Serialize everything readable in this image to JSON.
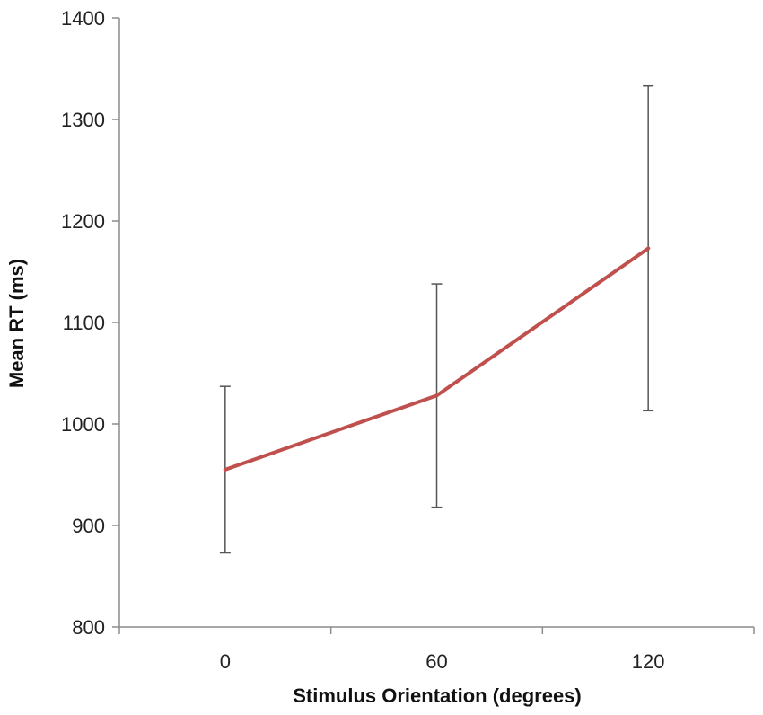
{
  "chart_data": {
    "type": "line",
    "title": "",
    "xlabel": "Stimulus Orientation (degrees)",
    "ylabel": "Mean RT (ms)",
    "categories": [
      "0",
      "60",
      "120"
    ],
    "series": [
      {
        "values": [
          955,
          1028,
          1173
        ],
        "error_low": [
          873,
          918,
          1013
        ],
        "error_high": [
          1037,
          1138,
          1333
        ],
        "color": "#C0504D"
      }
    ],
    "ylim": [
      800,
      1400
    ],
    "yticks": [
      "800",
      "900",
      "1000",
      "1100",
      "1200",
      "1300",
      "1400"
    ],
    "grid": false,
    "error_bar_color": "#555555",
    "axis_color": "#8C8C8C"
  }
}
